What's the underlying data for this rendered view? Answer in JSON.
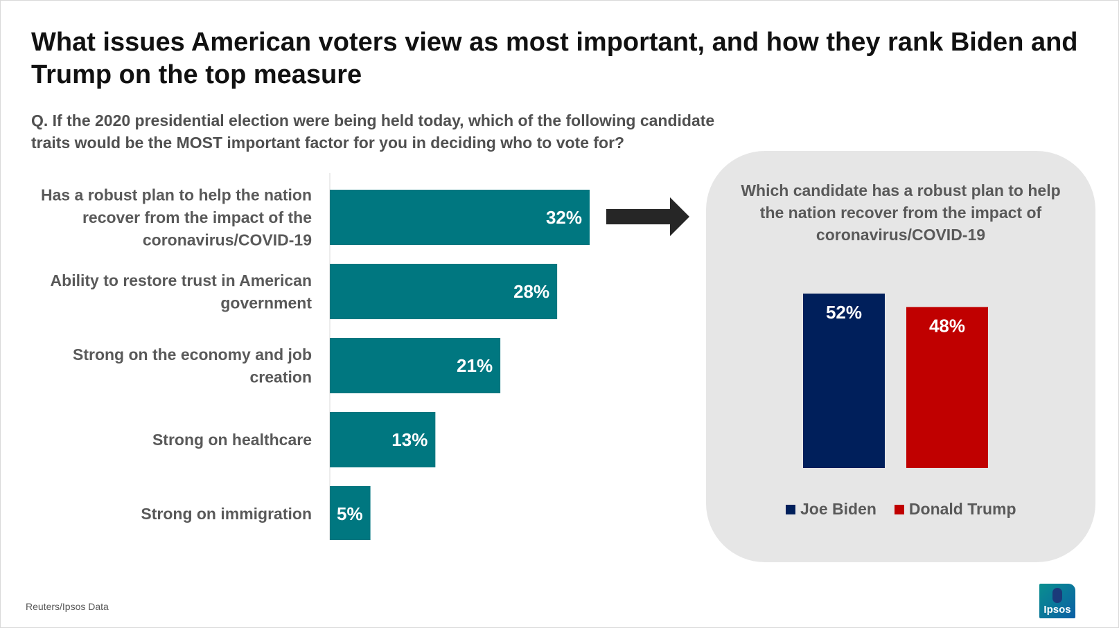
{
  "title": "What issues American voters view as most important, and how they rank Biden and Trump on the top measure",
  "question": "Q. If the 2020 presidential election were being held today, which of the following candidate traits would be the MOST important factor for you in deciding who to vote for?",
  "source": "Reuters/Ipsos Data",
  "logo_text": "Ipsos",
  "colors": {
    "bar": "#007780",
    "biden": "#001f5b",
    "trump": "#c00000",
    "arrow": "#262626",
    "panel": "#e6e6e6"
  },
  "chart_data": [
    {
      "type": "bar",
      "orientation": "horizontal",
      "title": "",
      "categories": [
        [
          "Has a robust plan to help the nation",
          "recover from the impact of the",
          "coronavirus/COVID-19"
        ],
        [
          "Ability to restore trust in American",
          "government"
        ],
        [
          "Strong on the economy and job",
          "creation"
        ],
        [
          "Strong on healthcare"
        ],
        [
          "Strong on immigration"
        ]
      ],
      "values": [
        32,
        28,
        21,
        13,
        5
      ],
      "value_labels": [
        "32%",
        "28%",
        "21%",
        "13%",
        "5%"
      ],
      "xlim": [
        0,
        35
      ],
      "grid": false
    },
    {
      "type": "bar",
      "orientation": "vertical",
      "title": "Which candidate has a robust plan to help the nation recover from the impact of coronavirus/COVID-19",
      "series": [
        {
          "name": "Joe Biden",
          "values": [
            52
          ],
          "label": "52%"
        },
        {
          "name": "Donald Trump",
          "values": [
            48
          ],
          "label": "48%"
        }
      ],
      "ylim": [
        0,
        52
      ],
      "legend": "bottom",
      "grid": false
    }
  ]
}
